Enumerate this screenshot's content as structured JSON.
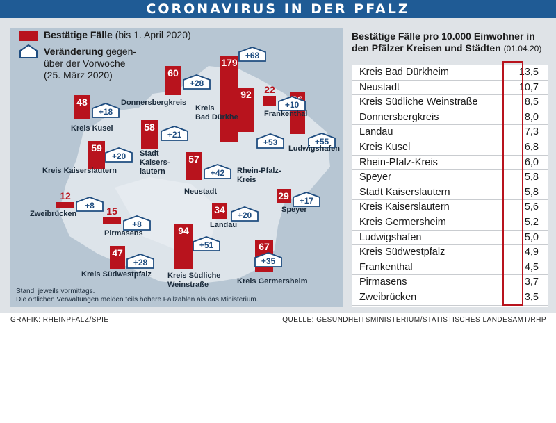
{
  "header": {
    "title": "CORONAVIRUS IN DER PFALZ"
  },
  "legend": {
    "cases_bold": "Bestätige Fälle",
    "cases_note": "(bis 1. April 2020)",
    "change_bold": "Veränderung",
    "change_rest": "gegen-\nüber der Vorwoche\n(25. März 2020)"
  },
  "map_note": {
    "line1": "Stand: jeweils vormittags.",
    "line2": "Die örtlichen Verwaltungen melden teils höhere Fallzahlen als das Ministerium."
  },
  "table": {
    "title": "Bestätige Fälle pro 10.000 Einwohner in den Pfälzer Kreisen und Städten",
    "date": "(01.04.20)"
  },
  "footer": {
    "left": "GRAFIK: RHEINPFALZ/SPIE",
    "right": "QUELLE: GESUNDHEITSMINISTERIUM/STATISTISCHES LANDESAMT/RHP"
  },
  "colors": {
    "bar": "#b8131d",
    "header": "#1f5b95",
    "map": "#b7c6d3"
  },
  "chart_data": [
    {
      "type": "bar",
      "title": "",
      "categories": [
        "Kreis Bad Dürkheim",
        "Ludwigshafen",
        "Kreis Südliche Weinstraße",
        "Rhein-Pfalz-Kreis",
        "Kreis Germersheim",
        "Donnersbergkreis",
        "Kreis Kaiserslautern",
        "Stadt Kaiserslautern",
        "Neustadt",
        "Kreis Kusel",
        "Kreis Südwestpfalz",
        "Landau",
        "Speyer",
        "Frankenthal",
        "Pirmasens",
        "Zweibrücken"
      ],
      "series": [
        {
          "name": "Bestätige Fälle",
          "values": [
            179,
            86,
            94,
            92,
            67,
            60,
            59,
            58,
            57,
            48,
            47,
            34,
            29,
            22,
            15,
            12
          ]
        },
        {
          "name": "Veränderung",
          "values": [
            68,
            55,
            51,
            53,
            35,
            28,
            20,
            21,
            42,
            18,
            28,
            20,
            17,
            10,
            8,
            8
          ]
        }
      ],
      "regions": [
        {
          "name": "Kreis\nBad Dürkheim",
          "cases": 179,
          "change": "+68"
        },
        {
          "name": "Ludwigshafen",
          "cases": 86,
          "change": "+55"
        },
        {
          "name": "Kreis Südliche\nWeinstraße",
          "cases": 94,
          "change": "+51"
        },
        {
          "name": "Rhein-Pfalz-\nKreis",
          "cases": 92,
          "change": "+53"
        },
        {
          "name": "Kreis Germersheim",
          "cases": 67,
          "change": "+35"
        },
        {
          "name": "Donnersbergkreis",
          "cases": 60,
          "change": "+28"
        },
        {
          "name": "Kreis Kaiserslautern",
          "cases": 59,
          "change": "+20"
        },
        {
          "name": "Stadt\nKaisers-\nlautern",
          "cases": 58,
          "change": "+21"
        },
        {
          "name": "Neustadt",
          "cases": 57,
          "change": "+42"
        },
        {
          "name": "Kreis Kusel",
          "cases": 48,
          "change": "+18"
        },
        {
          "name": "Kreis Südwestpfalz",
          "cases": 47,
          "change": "+28"
        },
        {
          "name": "Landau",
          "cases": 34,
          "change": "+20"
        },
        {
          "name": "Speyer",
          "cases": 29,
          "change": "+17"
        },
        {
          "name": "Frankenthal",
          "cases": 22,
          "change": "+10"
        },
        {
          "name": "Pirmasens",
          "cases": 15,
          "change": "+8"
        },
        {
          "name": "Zweibrücken",
          "cases": 12,
          "change": "+8"
        }
      ]
    },
    {
      "type": "table",
      "title": "Bestätige Fälle pro 10.000 Einwohner in den Pfälzer Kreisen und Städten",
      "categories": [
        "Kreis Bad Dürkheim",
        "Neustadt",
        "Kreis Südliche Weinstraße",
        "Donnersbergkreis",
        "Landau",
        "Kreis Kusel",
        "Rhein-Pfalz-Kreis",
        "Speyer",
        "Stadt Kaiserslautern",
        "Kreis Kaiserslautern",
        "Kreis Germersheim",
        "Ludwigshafen",
        "Kreis Südwestpfalz",
        "Frankenthal",
        "Pirmasens",
        "Zweibrücken"
      ],
      "values": [
        13.5,
        10.7,
        8.5,
        8.0,
        7.3,
        6.8,
        6.0,
        5.8,
        5.8,
        5.6,
        5.2,
        5.0,
        4.9,
        4.5,
        3.7,
        3.5
      ],
      "labels": [
        "13,5",
        "10,7",
        "8,5",
        "8,0",
        "7,3",
        "6,8",
        "6,0",
        "5,8",
        "5,8",
        "5,6",
        "5,2",
        "5,0",
        "4,9",
        "4,5",
        "3,7",
        "3,5"
      ]
    }
  ]
}
